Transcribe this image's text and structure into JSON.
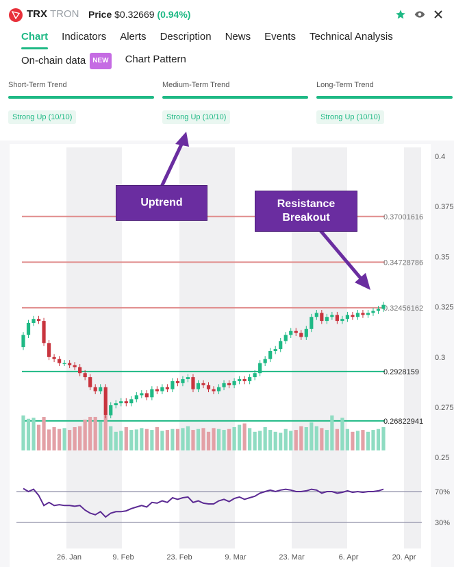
{
  "header": {
    "symbol": "TRX",
    "name": "TRON",
    "price_label": "Price",
    "price": "$0.32669",
    "change": "(0.94%)",
    "icons": [
      "star-icon",
      "eye-icon",
      "close-icon"
    ]
  },
  "tabs_row1": [
    "Chart",
    "Indicators",
    "Alerts",
    "Description",
    "News",
    "Events",
    "Technical Analysis"
  ],
  "tabs_row2": {
    "onchain": "On-chain data",
    "badge": "NEW",
    "pattern": "Chart Pattern"
  },
  "trends": [
    {
      "title": "Short-Term Trend",
      "status": "Strong Up (10/10)"
    },
    {
      "title": "Medium-Term Trend",
      "status": "Strong Up (10/10)"
    },
    {
      "title": "Long-Term Trend",
      "status": "Strong Up (10/10)"
    }
  ],
  "callouts": {
    "uptrend": "Uptrend",
    "resistance": "Resistance Breakout"
  },
  "colors": {
    "up": "#1fb985",
    "down": "#c8343e",
    "resistance": "#e08c8c",
    "support": "#1fb985",
    "rsi": "#5b2a93",
    "accent": "#6a2da0"
  },
  "chart_data": {
    "type": "candlestick",
    "y_ticks": [
      "0.4",
      "0.375",
      "0.35",
      "0.325",
      "0.3",
      "0.275",
      "0.25"
    ],
    "x_ticks": [
      "26. Jan",
      "9. Feb",
      "23. Feb",
      "9. Mar",
      "23. Mar",
      "6. Apr",
      "20. Apr"
    ],
    "ylim": [
      0.25,
      0.4
    ],
    "resistance_levels": [
      "0.37001616",
      "0.34728786",
      "0.32456162"
    ],
    "support_levels": [
      "0.2928159",
      "0.26822941"
    ],
    "rsi_levels": [
      "70%",
      "30%"
    ],
    "close": [
      0.311,
      0.317,
      0.319,
      0.318,
      0.307,
      0.3,
      0.299,
      0.297,
      0.297,
      0.296,
      0.295,
      0.292,
      0.29,
      0.285,
      0.283,
      0.285,
      0.271,
      0.276,
      0.277,
      0.278,
      0.277,
      0.279,
      0.281,
      0.282,
      0.28,
      0.284,
      0.283,
      0.285,
      0.284,
      0.288,
      0.287,
      0.289,
      0.29,
      0.284,
      0.287,
      0.286,
      0.284,
      0.283,
      0.285,
      0.287,
      0.286,
      0.288,
      0.289,
      0.288,
      0.29,
      0.292,
      0.297,
      0.299,
      0.303,
      0.304,
      0.308,
      0.311,
      0.313,
      0.312,
      0.31,
      0.314,
      0.32,
      0.322,
      0.318,
      0.32,
      0.321,
      0.318,
      0.319,
      0.321,
      0.32,
      0.322,
      0.321,
      0.322,
      0.323,
      0.324,
      0.326
    ],
    "volume": [
      75,
      68,
      70,
      55,
      72,
      45,
      50,
      46,
      48,
      44,
      50,
      52,
      66,
      72,
      72,
      62,
      74,
      52,
      40,
      42,
      50,
      44,
      45,
      48,
      46,
      44,
      50,
      42,
      44,
      46,
      46,
      48,
      52,
      44,
      46,
      48,
      40,
      48,
      46,
      44,
      46,
      50,
      55,
      58,
      48,
      40,
      42,
      50,
      44,
      40,
      38,
      46,
      42,
      44,
      52,
      50,
      60,
      52,
      48,
      44,
      75,
      46,
      70,
      46,
      40,
      42,
      44,
      40,
      44,
      46,
      50
    ],
    "rsi": [
      74,
      70,
      73,
      65,
      52,
      56,
      52,
      53,
      52,
      52,
      51,
      52,
      46,
      42,
      40,
      44,
      37,
      42,
      44,
      44,
      45,
      48,
      50,
      52,
      50,
      56,
      55,
      58,
      56,
      62,
      60,
      62,
      63,
      56,
      58,
      55,
      54,
      54,
      58,
      60,
      57,
      61,
      63,
      60,
      62,
      64,
      68,
      70,
      72,
      70,
      72,
      73,
      72,
      70,
      70,
      71,
      73,
      72,
      68,
      70,
      70,
      68,
      69,
      71,
      69,
      70,
      69,
      70,
      70,
      71,
      73
    ]
  }
}
